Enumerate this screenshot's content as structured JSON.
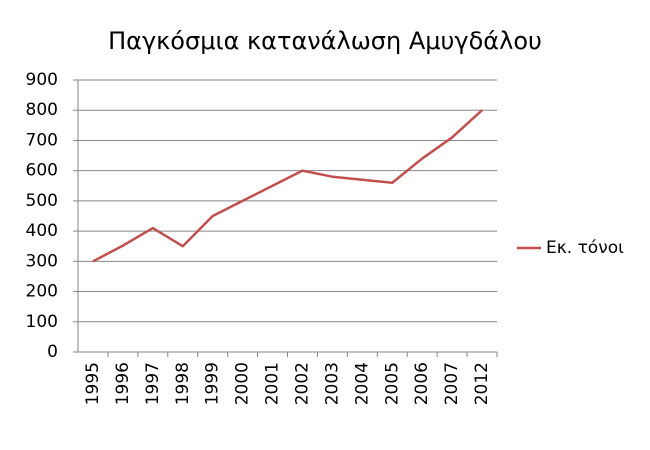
{
  "chart_data": {
    "type": "line",
    "title": "Παγκόσμια κατανάλωση Αμυγδάλου",
    "categories": [
      "1995",
      "1996",
      "1997",
      "1998",
      "1999",
      "2000",
      "2001",
      "2002",
      "2003",
      "2004",
      "2005",
      "2006",
      "2007",
      "2012"
    ],
    "series": [
      {
        "name": "Εκ. τόνοι",
        "color": "#c0504d",
        "values": [
          300,
          352,
          410,
          350,
          450,
          500,
          550,
          600,
          580,
          570,
          560,
          640,
          710,
          800
        ]
      }
    ],
    "ylim": [
      0,
      900
    ],
    "yticks": [
      0,
      100,
      200,
      300,
      400,
      500,
      600,
      700,
      800,
      900
    ],
    "grid": true,
    "legend": "right"
  }
}
